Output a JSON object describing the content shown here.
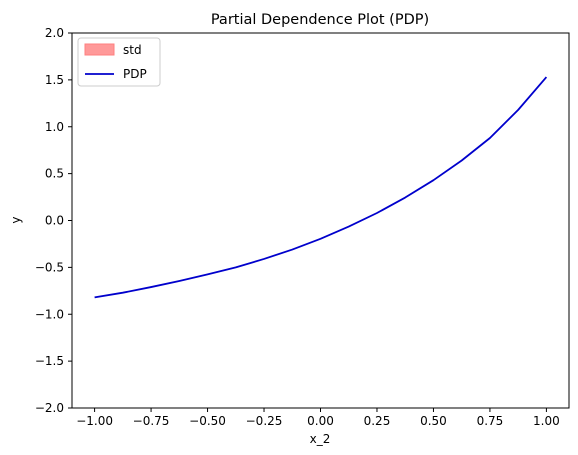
{
  "chart_data": {
    "type": "line",
    "title": "Partial Dependence Plot (PDP)",
    "xlabel": "x_2",
    "ylabel": "y",
    "xlim": [
      -1.1,
      1.1
    ],
    "ylim": [
      -2.0,
      2.0
    ],
    "xticks": [
      -1.0,
      -0.75,
      -0.5,
      -0.25,
      0.0,
      0.25,
      0.5,
      0.75,
      1.0
    ],
    "xtick_labels": [
      "−1.00",
      "−0.75",
      "−0.50",
      "−0.25",
      "0.00",
      "0.25",
      "0.50",
      "0.75",
      "1.00"
    ],
    "yticks": [
      -2.0,
      -1.5,
      -1.0,
      -0.5,
      0.0,
      0.5,
      1.0,
      1.5,
      2.0
    ],
    "ytick_labels": [
      "−2.0",
      "−1.5",
      "−1.0",
      "−0.5",
      "0.0",
      "0.5",
      "1.0",
      "1.5",
      "2.0"
    ],
    "grid": false,
    "legend": {
      "position": "top-left",
      "entries": [
        "std",
        "PDP"
      ]
    },
    "series": [
      {
        "name": "PDP",
        "color": "#0000cc",
        "x": [
          -1.0,
          -0.875,
          -0.75,
          -0.625,
          -0.5,
          -0.375,
          -0.25,
          -0.125,
          0.0,
          0.125,
          0.25,
          0.375,
          0.5,
          0.625,
          0.75,
          0.875,
          1.0
        ],
        "y": [
          -0.82,
          -0.77,
          -0.71,
          -0.645,
          -0.575,
          -0.5,
          -0.41,
          -0.31,
          -0.195,
          -0.065,
          0.08,
          0.245,
          0.43,
          0.64,
          0.88,
          1.18,
          1.53
        ]
      },
      {
        "name": "std",
        "color": "#ff9999",
        "x": [
          -1.0,
          -0.875,
          -0.75,
          -0.625,
          -0.5,
          -0.375,
          -0.25,
          -0.125,
          0.0,
          0.125,
          0.25,
          0.375,
          0.5,
          0.625,
          0.75,
          0.875,
          1.0
        ],
        "lower": [
          -0.82,
          -0.77,
          -0.71,
          -0.645,
          -0.575,
          -0.5,
          -0.41,
          -0.31,
          -0.195,
          -0.065,
          0.08,
          0.245,
          0.43,
          0.64,
          0.88,
          1.18,
          1.53
        ],
        "upper": [
          -0.82,
          -0.77,
          -0.71,
          -0.645,
          -0.575,
          -0.5,
          -0.41,
          -0.31,
          -0.195,
          -0.065,
          0.08,
          0.245,
          0.43,
          0.64,
          0.88,
          1.18,
          1.53
        ]
      }
    ]
  }
}
